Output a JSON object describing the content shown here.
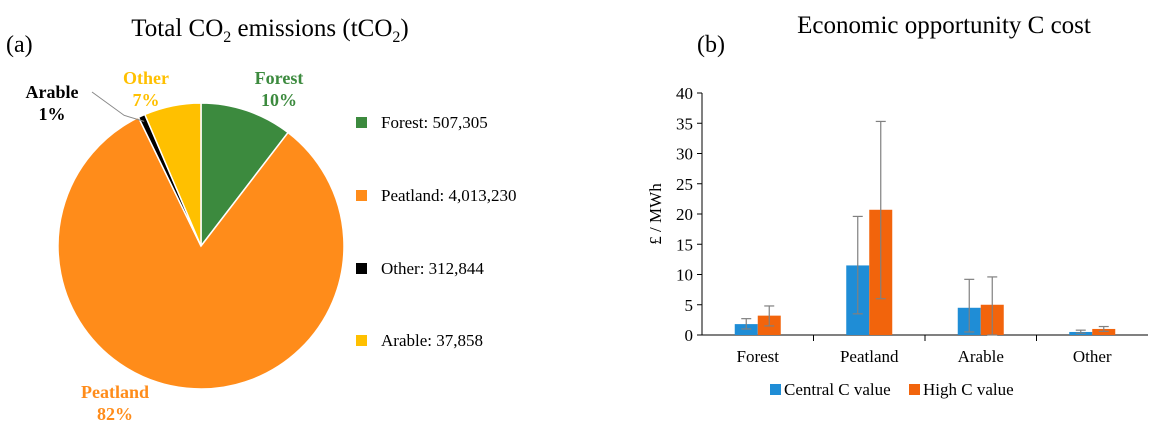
{
  "panels": {
    "a_label": "(a)",
    "b_label": "(b)"
  },
  "chart_data": [
    {
      "type": "pie",
      "title": "Total CO",
      "title_sub": "2",
      "title_tail": " emissions (tCO",
      "title_tail_sub": "2",
      "title_end": ")",
      "slices": [
        {
          "name": "Forest",
          "value": 507305,
          "percent_label": "10%",
          "color": "#3C8A3E",
          "legend_label": "Forest: 507,305"
        },
        {
          "name": "Peatland",
          "value": 4013230,
          "percent_label": "82%",
          "color": "#FF8C1A",
          "legend_label": "Peatland: 4,013,230"
        },
        {
          "name": "Arable",
          "value": 37858,
          "percent_label": "1%",
          "color": "#000000",
          "legend_label": "Other: 312,844"
        },
        {
          "name": "Other",
          "value": 312844,
          "percent_label": "7%",
          "color": "#FFC000",
          "legend_label": "Arable: 37,858"
        }
      ],
      "label_colors": {
        "Forest": "#3C8A3E",
        "Peatland": "#FF8C1A",
        "Arable": "#000000",
        "Other": "#FFC000"
      }
    },
    {
      "type": "bar",
      "title": "Economic opportunity C cost",
      "ylabel": "£ / MWh",
      "ylim": [
        0,
        40
      ],
      "yticks": [
        0,
        5,
        10,
        15,
        20,
        25,
        30,
        35,
        40
      ],
      "categories": [
        "Forest",
        "Peatland",
        "Arable",
        "Other"
      ],
      "series": [
        {
          "name": "Central C value",
          "color": "#1F8DD6",
          "values": [
            1.8,
            11.5,
            4.5,
            0.5
          ],
          "err_low": [
            1.0,
            3.5,
            0.5,
            0.3
          ],
          "err_high": [
            2.7,
            19.6,
            9.2,
            0.8
          ]
        },
        {
          "name": "High C value",
          "color": "#F2640C",
          "values": [
            3.2,
            20.7,
            5.0,
            1.0
          ],
          "err_low": [
            1.5,
            6.0,
            0.0,
            0.6
          ],
          "err_high": [
            4.8,
            35.3,
            9.6,
            1.4
          ]
        }
      ],
      "legend_position": "bottom",
      "grid": false
    }
  ]
}
